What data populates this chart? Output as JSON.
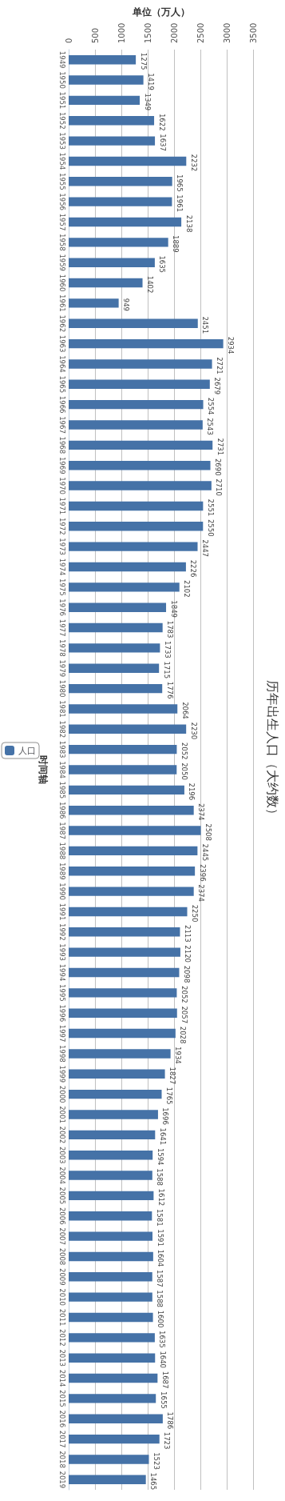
{
  "chart_data": {
    "type": "bar",
    "orientation": "horizontal",
    "title": "历年出生人口（大约数）",
    "xlabel": "单位（万人）",
    "ylabel": "时间轴",
    "categories": [
      "1949",
      "1950",
      "1951",
      "1952",
      "1953",
      "1954",
      "1955",
      "1956",
      "1957",
      "1958",
      "1959",
      "1960",
      "1961",
      "1962",
      "1963",
      "1964",
      "1965",
      "1966",
      "1967",
      "1968",
      "1969",
      "1970",
      "1971",
      "1972",
      "1973",
      "1974",
      "1975",
      "1976",
      "1977",
      "1978",
      "1979",
      "1980",
      "1981",
      "1982",
      "1983",
      "1984",
      "1985",
      "1986",
      "1987",
      "1988",
      "1989",
      "1990",
      "1991",
      "1992",
      "1993",
      "1994",
      "1995",
      "1996",
      "1997",
      "1998",
      "1999",
      "2000",
      "2001",
      "2002",
      "2003",
      "2004",
      "2005",
      "2006",
      "2007",
      "2008",
      "2009",
      "2010",
      "2011",
      "2012",
      "2013",
      "2014",
      "2015",
      "2016",
      "2017",
      "2018",
      "2019"
    ],
    "series": [
      {
        "name": "人口",
        "color": "#4572a7",
        "values": [
          1275,
          1419,
          1349,
          1622,
          1637,
          2232,
          1965,
          1961,
          2138,
          1889,
          1635,
          1402,
          949,
          2451,
          2934,
          2721,
          2679,
          2554,
          2543,
          2731,
          2690,
          2710,
          2551,
          2550,
          2447,
          2226,
          2102,
          1849,
          1783,
          1733,
          1715,
          1776,
          2064,
          2230,
          2052,
          2050,
          2196,
          2374,
          2508,
          2445,
          2396,
          2374,
          2250,
          2113,
          2120,
          2098,
          2052,
          2057,
          2028,
          1934,
          1827,
          1765,
          1696,
          1641,
          1594,
          1588,
          1612,
          1581,
          1591,
          1604,
          1587,
          1588,
          1600,
          1635,
          1640,
          1687,
          1655,
          1786,
          1723,
          1523,
          1465
        ]
      }
    ],
    "xlim": [
      0,
      3500
    ],
    "xticks": [
      0,
      500,
      1000,
      1500,
      2000,
      2500,
      3000,
      3500
    ],
    "grid": "x",
    "legend": "left",
    "data_labels": true
  }
}
